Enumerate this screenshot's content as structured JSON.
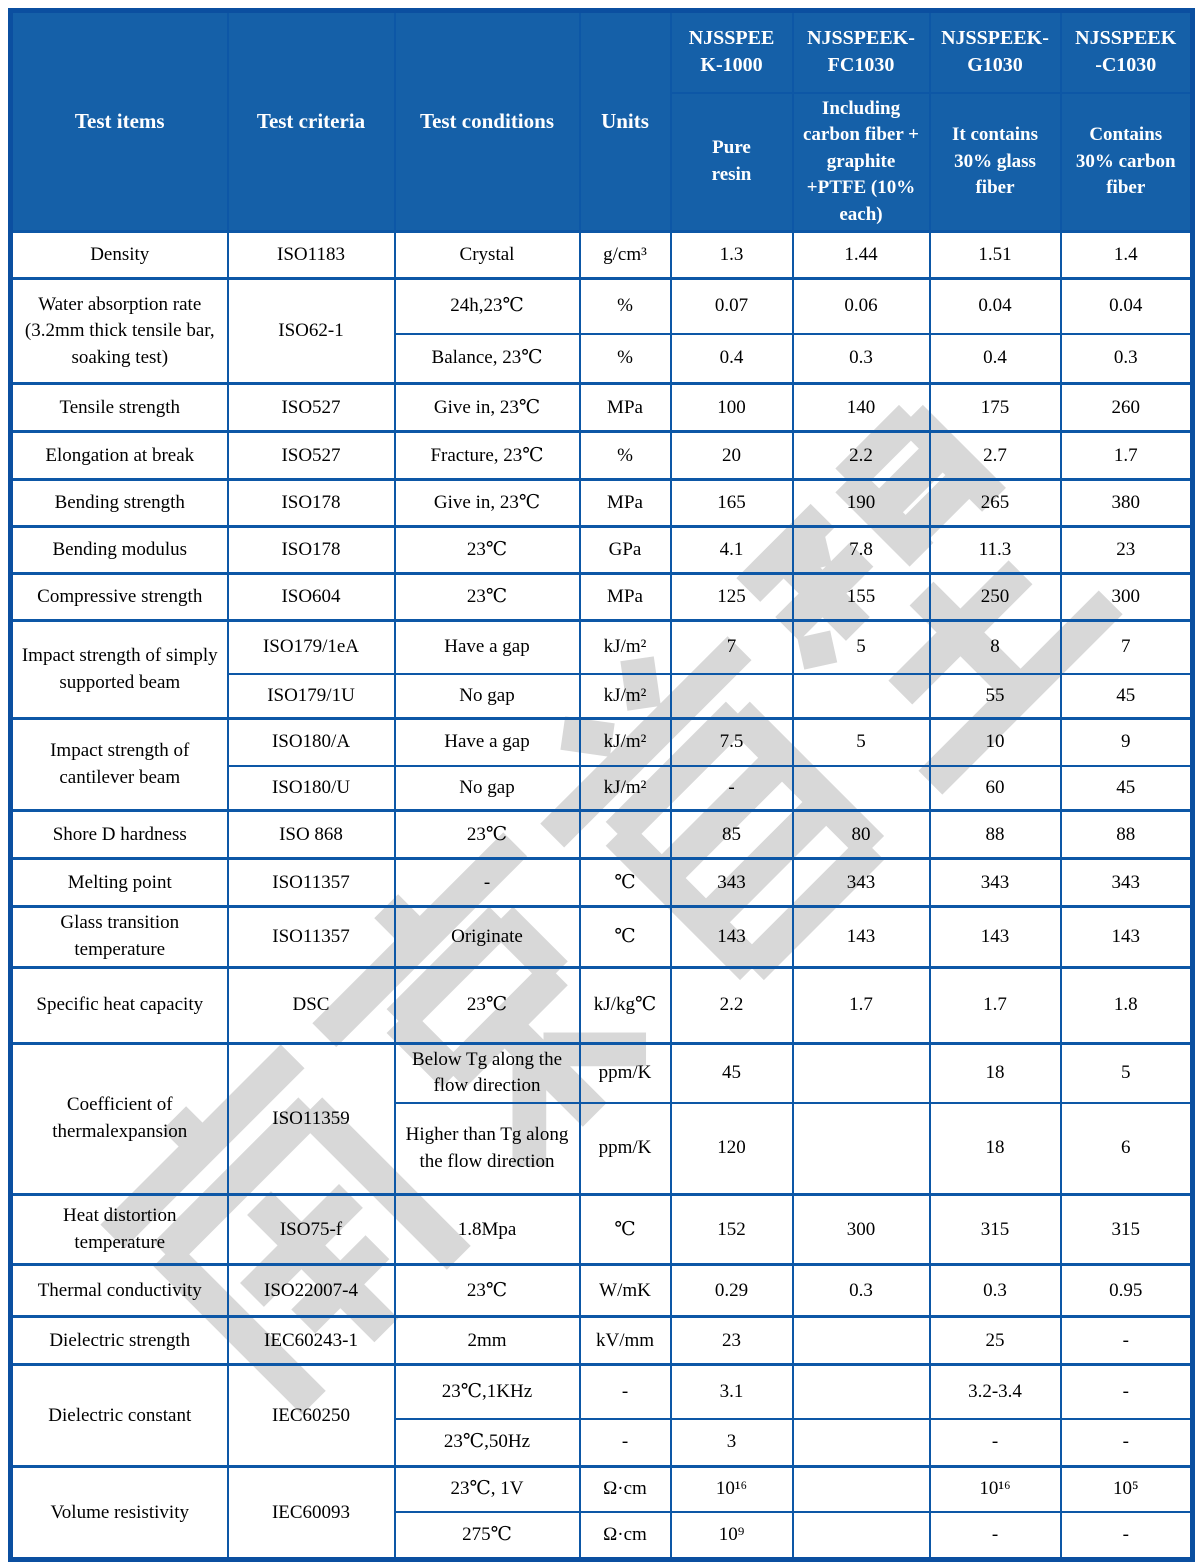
{
  "watermark": {
    "text": "南京首塑"
  },
  "table": {
    "header": {
      "left_columns": [
        "Test items",
        "Test criteria",
        "Test conditions",
        "Units"
      ],
      "products": [
        {
          "name": "NJSSPEE\nK-1000",
          "description": "Pure\nresin"
        },
        {
          "name": "NJSSPEEK-\nFC1030",
          "description": "Including\ncarbon fiber +\ngraphite\n+PTFE (10%\neach)"
        },
        {
          "name": "NJSSPEEK-\nG1030",
          "description": "It contains\n30% glass\nfiber"
        },
        {
          "name": "NJSSPEEK\n-C1030",
          "description": "Contains\n30% carbon\nfiber"
        }
      ]
    },
    "rows": [
      [
        {
          "t": "Density"
        },
        {
          "t": "ISO1183"
        },
        {
          "t": "Crystal"
        },
        {
          "t": "g/cm³"
        },
        {
          "t": "1.3"
        },
        {
          "t": "1.44"
        },
        {
          "t": "1.51"
        },
        {
          "t": "1.4"
        }
      ],
      [
        {
          "t": "Water absorption rate (3.2mm thick tensile bar, soaking test)",
          "rs": 2
        },
        {
          "t": "ISO62-1",
          "rs": 2
        },
        {
          "t": "24h,23℃"
        },
        {
          "t": "%"
        },
        {
          "t": "0.07"
        },
        {
          "t": "0.06"
        },
        {
          "t": "0.04"
        },
        {
          "t": "0.04"
        }
      ],
      [
        {
          "t": "Balance, 23℃"
        },
        {
          "t": "%"
        },
        {
          "t": "0.4"
        },
        {
          "t": "0.3"
        },
        {
          "t": "0.4"
        },
        {
          "t": "0.3"
        }
      ],
      [
        {
          "t": "Tensile strength"
        },
        {
          "t": "ISO527"
        },
        {
          "t": "Give in, 23℃"
        },
        {
          "t": "MPa"
        },
        {
          "t": "100"
        },
        {
          "t": "140"
        },
        {
          "t": "175"
        },
        {
          "t": "260"
        }
      ],
      [
        {
          "t": "Elongation at break"
        },
        {
          "t": "ISO527"
        },
        {
          "t": "Fracture, 23℃"
        },
        {
          "t": "%"
        },
        {
          "t": "20"
        },
        {
          "t": "2.2"
        },
        {
          "t": "2.7"
        },
        {
          "t": "1.7"
        }
      ],
      [
        {
          "t": "Bending strength"
        },
        {
          "t": "ISO178"
        },
        {
          "t": "Give in, 23℃"
        },
        {
          "t": "MPa"
        },
        {
          "t": "165"
        },
        {
          "t": "190"
        },
        {
          "t": "265"
        },
        {
          "t": "380"
        }
      ],
      [
        {
          "t": "Bending modulus"
        },
        {
          "t": "ISO178"
        },
        {
          "t": "23℃"
        },
        {
          "t": "GPa"
        },
        {
          "t": "4.1"
        },
        {
          "t": "7.8"
        },
        {
          "t": "11.3"
        },
        {
          "t": "23"
        }
      ],
      [
        {
          "t": "Compressive strength"
        },
        {
          "t": "ISO604"
        },
        {
          "t": "23℃"
        },
        {
          "t": "MPa"
        },
        {
          "t": "125"
        },
        {
          "t": "155"
        },
        {
          "t": "250"
        },
        {
          "t": "300"
        }
      ],
      [
        {
          "t": "Impact strength of simply supported beam",
          "rs": 2
        },
        {
          "t": "ISO179/1eA"
        },
        {
          "t": "Have a gap"
        },
        {
          "t": "kJ/m²"
        },
        {
          "t": "7"
        },
        {
          "t": "5"
        },
        {
          "t": "8"
        },
        {
          "t": "7"
        }
      ],
      [
        {
          "t": "ISO179/1U"
        },
        {
          "t": "No gap"
        },
        {
          "t": "kJ/m²"
        },
        {
          "t": ""
        },
        {
          "t": ""
        },
        {
          "t": "55"
        },
        {
          "t": "45"
        }
      ],
      [
        {
          "t": "Impact strength of cantilever beam",
          "rs": 2
        },
        {
          "t": "ISO180/A"
        },
        {
          "t": "Have a gap"
        },
        {
          "t": "kJ/m²"
        },
        {
          "t": "7.5"
        },
        {
          "t": "5"
        },
        {
          "t": "10"
        },
        {
          "t": "9"
        }
      ],
      [
        {
          "t": "ISO180/U"
        },
        {
          "t": "No gap"
        },
        {
          "t": "kJ/m²"
        },
        {
          "t": "-"
        },
        {
          "t": ""
        },
        {
          "t": "60"
        },
        {
          "t": "45"
        }
      ],
      [
        {
          "t": "Shore D hardness"
        },
        {
          "t": "ISO 868"
        },
        {
          "t": "23℃"
        },
        {
          "t": ""
        },
        {
          "t": "85"
        },
        {
          "t": "80"
        },
        {
          "t": "88"
        },
        {
          "t": "88"
        }
      ],
      [
        {
          "t": "Melting point"
        },
        {
          "t": "ISO11357"
        },
        {
          "t": "-"
        },
        {
          "t": "℃"
        },
        {
          "t": "343"
        },
        {
          "t": "343"
        },
        {
          "t": "343"
        },
        {
          "t": "343"
        }
      ],
      [
        {
          "t": "Glass transition temperature"
        },
        {
          "t": "ISO11357"
        },
        {
          "t": "Originate"
        },
        {
          "t": "℃"
        },
        {
          "t": "143"
        },
        {
          "t": "143"
        },
        {
          "t": "143"
        },
        {
          "t": "143"
        }
      ],
      [
        {
          "t": "Specific heat capacity"
        },
        {
          "t": "DSC"
        },
        {
          "t": "23℃"
        },
        {
          "t": "kJ/kg℃"
        },
        {
          "t": "2.2"
        },
        {
          "t": "1.7"
        },
        {
          "t": "1.7"
        },
        {
          "t": "1.8"
        }
      ],
      [
        {
          "t": "Coefficient of thermalexpansion",
          "rs": 2
        },
        {
          "t": "ISO11359",
          "rs": 2
        },
        {
          "t": "Below Tg along the flow direction"
        },
        {
          "t": "ppm/K"
        },
        {
          "t": "45"
        },
        {
          "t": ""
        },
        {
          "t": "18"
        },
        {
          "t": "5"
        }
      ],
      [
        {
          "t": "Higher than Tg along the flow direction"
        },
        {
          "t": "ppm/K"
        },
        {
          "t": "120"
        },
        {
          "t": ""
        },
        {
          "t": "18"
        },
        {
          "t": "6"
        }
      ],
      [
        {
          "t": "Heat distortion temperature"
        },
        {
          "t": "ISO75-f"
        },
        {
          "t": "1.8Mpa"
        },
        {
          "t": "℃"
        },
        {
          "t": "152"
        },
        {
          "t": "300"
        },
        {
          "t": "315"
        },
        {
          "t": "315"
        }
      ],
      [
        {
          "t": "Thermal conductivity"
        },
        {
          "t": "ISO22007-4"
        },
        {
          "t": "23℃"
        },
        {
          "t": "W/mK"
        },
        {
          "t": "0.29"
        },
        {
          "t": "0.3"
        },
        {
          "t": "0.3"
        },
        {
          "t": "0.95"
        }
      ],
      [
        {
          "t": "Dielectric strength"
        },
        {
          "t": "IEC60243-1"
        },
        {
          "t": "2mm"
        },
        {
          "t": "kV/mm"
        },
        {
          "t": "23"
        },
        {
          "t": ""
        },
        {
          "t": "25"
        },
        {
          "t": "-"
        }
      ],
      [
        {
          "t": "Dielectric constant",
          "rs": 2
        },
        {
          "t": "IEC60250",
          "rs": 2
        },
        {
          "t": "23℃,1KHz"
        },
        {
          "t": "-"
        },
        {
          "t": "3.1"
        },
        {
          "t": ""
        },
        {
          "t": "3.2-3.4"
        },
        {
          "t": "-"
        }
      ],
      [
        {
          "t": "23℃,50Hz"
        },
        {
          "t": "-"
        },
        {
          "t": "3"
        },
        {
          "t": ""
        },
        {
          "t": "-"
        },
        {
          "t": "-"
        }
      ],
      [
        {
          "t": "Volume resistivity",
          "rs": 2
        },
        {
          "t": "IEC60093",
          "rs": 2
        },
        {
          "t": "23℃, 1V"
        },
        {
          "t": "Ω·cm"
        },
        {
          "t": "10¹⁶"
        },
        {
          "t": ""
        },
        {
          "t": "10¹⁶"
        },
        {
          "t": "10⁵"
        }
      ],
      [
        {
          "t": "275℃"
        },
        {
          "t": "Ω·cm"
        },
        {
          "t": "10⁹"
        },
        {
          "t": ""
        },
        {
          "t": "-"
        },
        {
          "t": "-"
        }
      ]
    ]
  },
  "colors": {
    "header_bg": "#1560a8",
    "grid_line": "#0d57a6",
    "outer_border": "#0b4fa0",
    "watermark_gray": "#d8d8d8"
  }
}
